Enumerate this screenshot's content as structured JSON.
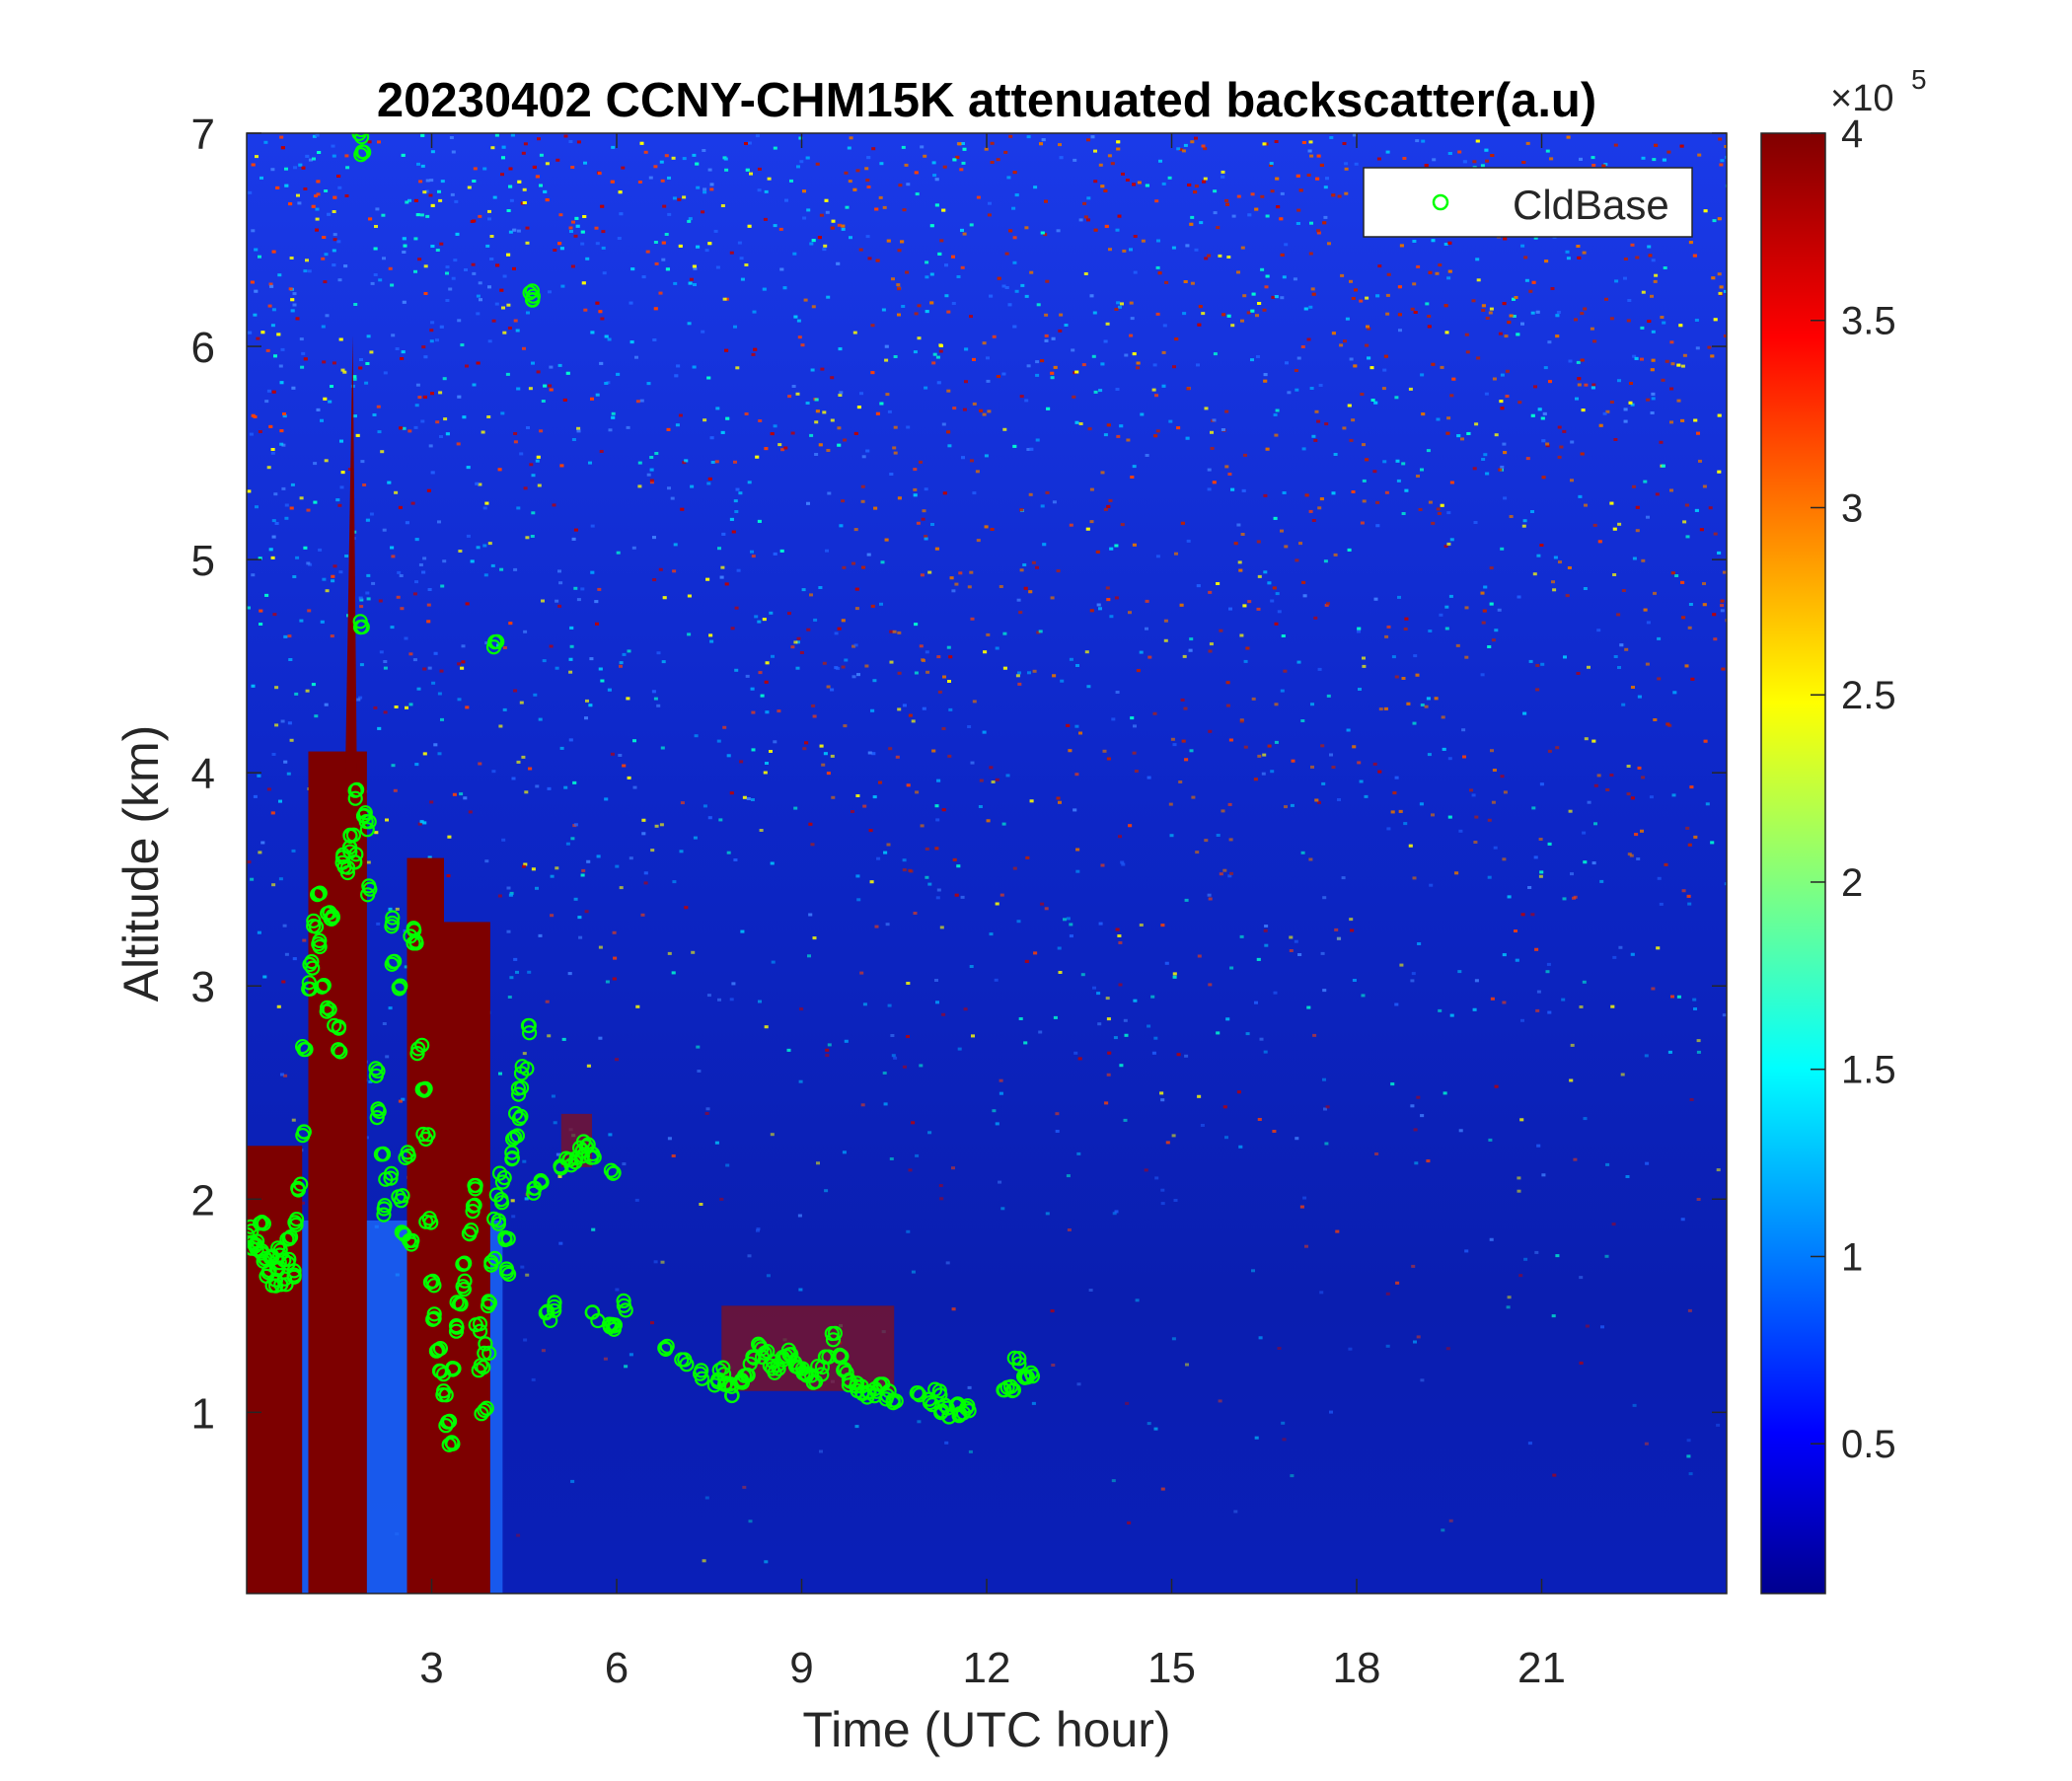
{
  "chart_data": {
    "type": "heatmap",
    "title": "20230402 CCNY-CHM15K attenuated backscatter(a.u)",
    "xlabel": "Time (UTC hour)",
    "ylabel": "Altitude (km)",
    "xlim": [
      0,
      24
    ],
    "ylim": [
      0.15,
      7
    ],
    "xticks": [
      3,
      6,
      9,
      12,
      15,
      18,
      21
    ],
    "yticks": [
      1,
      2,
      3,
      4,
      5,
      6,
      7
    ],
    "colormap": "jet",
    "colorbar": {
      "range": [
        0.1,
        4
      ],
      "ticks": [
        0.5,
        1,
        1.5,
        2,
        2.5,
        3,
        3.5,
        4
      ],
      "exponent_label": "×10",
      "exponent": "5"
    },
    "legend": {
      "position": "top-right",
      "entries": [
        "CldBase"
      ]
    },
    "series": [
      {
        "name": "CldBase",
        "marker": "circle",
        "color": "#00ff00",
        "points": [
          [
            0.05,
            1.85
          ],
          [
            0.1,
            1.78
          ],
          [
            0.15,
            1.8
          ],
          [
            0.2,
            1.75
          ],
          [
            0.25,
            1.9
          ],
          [
            0.3,
            1.7
          ],
          [
            0.35,
            1.65
          ],
          [
            0.4,
            1.72
          ],
          [
            0.45,
            1.6
          ],
          [
            0.5,
            1.68
          ],
          [
            0.55,
            1.75
          ],
          [
            0.6,
            1.62
          ],
          [
            0.65,
            1.7
          ],
          [
            0.7,
            1.8
          ],
          [
            0.75,
            1.65
          ],
          [
            0.8,
            1.9
          ],
          [
            0.85,
            2.05
          ],
          [
            0.9,
            2.3
          ],
          [
            0.95,
            2.7
          ],
          [
            1.0,
            3.0
          ],
          [
            1.05,
            3.1
          ],
          [
            1.1,
            3.3
          ],
          [
            1.15,
            3.45
          ],
          [
            1.2,
            3.2
          ],
          [
            1.25,
            3.0
          ],
          [
            1.3,
            2.9
          ],
          [
            1.35,
            3.35
          ],
          [
            1.4,
            3.3
          ],
          [
            1.45,
            2.8
          ],
          [
            1.5,
            2.7
          ],
          [
            1.55,
            3.6
          ],
          [
            1.6,
            3.55
          ],
          [
            1.65,
            3.65
          ],
          [
            1.7,
            3.7
          ],
          [
            1.75,
            3.6
          ],
          [
            1.8,
            3.9
          ],
          [
            1.85,
            4.7
          ],
          [
            1.9,
            3.8
          ],
          [
            1.95,
            3.75
          ],
          [
            1.85,
            7.0
          ],
          [
            1.88,
            6.9
          ],
          [
            2.0,
            3.45
          ],
          [
            2.1,
            2.6
          ],
          [
            2.15,
            2.4
          ],
          [
            2.2,
            2.2
          ],
          [
            2.25,
            1.95
          ],
          [
            2.3,
            2.1
          ],
          [
            2.35,
            3.3
          ],
          [
            2.4,
            3.1
          ],
          [
            2.45,
            3.0
          ],
          [
            2.5,
            2.0
          ],
          [
            2.55,
            1.85
          ],
          [
            2.6,
            2.2
          ],
          [
            2.65,
            1.8
          ],
          [
            2.7,
            3.25
          ],
          [
            2.75,
            3.2
          ],
          [
            2.8,
            2.7
          ],
          [
            2.85,
            2.5
          ],
          [
            2.9,
            2.3
          ],
          [
            2.95,
            1.9
          ],
          [
            3.0,
            1.6
          ],
          [
            3.05,
            1.45
          ],
          [
            3.1,
            1.3
          ],
          [
            3.15,
            1.2
          ],
          [
            3.2,
            1.1
          ],
          [
            3.25,
            0.95
          ],
          [
            3.3,
            0.85
          ],
          [
            3.35,
            1.2
          ],
          [
            3.4,
            1.4
          ],
          [
            3.45,
            1.5
          ],
          [
            3.5,
            1.6
          ],
          [
            3.55,
            1.7
          ],
          [
            3.6,
            1.85
          ],
          [
            3.65,
            1.95
          ],
          [
            3.7,
            2.05
          ],
          [
            3.75,
            1.4
          ],
          [
            3.8,
            1.2
          ],
          [
            3.85,
            1.0
          ],
          [
            3.9,
            1.3
          ],
          [
            3.95,
            1.5
          ],
          [
            4.0,
            1.7
          ],
          [
            4.02,
            4.6
          ],
          [
            4.05,
            1.9
          ],
          [
            4.1,
            2.0
          ],
          [
            4.15,
            2.1
          ],
          [
            4.2,
            1.8
          ],
          [
            4.25,
            1.65
          ],
          [
            4.3,
            2.2
          ],
          [
            4.35,
            2.3
          ],
          [
            4.4,
            2.4
          ],
          [
            4.45,
            2.5
          ],
          [
            4.5,
            2.6
          ],
          [
            4.55,
            2.8
          ],
          [
            4.6,
            6.25
          ],
          [
            4.65,
            6.22
          ],
          [
            4.7,
            2.05
          ],
          [
            4.8,
            2.1
          ],
          [
            4.9,
            1.45
          ],
          [
            5.0,
            1.5
          ],
          [
            5.1,
            2.15
          ],
          [
            5.2,
            2.2
          ],
          [
            5.3,
            2.18
          ],
          [
            5.4,
            2.22
          ],
          [
            5.5,
            2.25
          ],
          [
            5.6,
            2.2
          ],
          [
            5.65,
            1.45
          ],
          [
            5.9,
            1.42
          ],
          [
            6.0,
            1.4
          ],
          [
            5.95,
            2.13
          ],
          [
            6.1,
            1.5
          ],
          [
            6.8,
            1.3
          ],
          [
            7.1,
            1.23
          ],
          [
            7.4,
            1.18
          ],
          [
            7.6,
            1.15
          ],
          [
            7.7,
            1.2
          ],
          [
            7.8,
            1.12
          ],
          [
            7.9,
            1.1
          ],
          [
            8.0,
            1.15
          ],
          [
            8.1,
            1.18
          ],
          [
            8.2,
            1.25
          ],
          [
            8.3,
            1.3
          ],
          [
            8.4,
            1.28
          ],
          [
            8.5,
            1.22
          ],
          [
            8.6,
            1.2
          ],
          [
            8.7,
            1.25
          ],
          [
            8.8,
            1.28
          ],
          [
            8.9,
            1.22
          ],
          [
            9.0,
            1.2
          ],
          [
            9.1,
            1.18
          ],
          [
            9.2,
            1.15
          ],
          [
            9.3,
            1.2
          ],
          [
            9.4,
            1.25
          ],
          [
            9.5,
            1.35
          ],
          [
            9.6,
            1.28
          ],
          [
            9.7,
            1.2
          ],
          [
            9.8,
            1.15
          ],
          [
            9.9,
            1.12
          ],
          [
            10.0,
            1.1
          ],
          [
            10.1,
            1.08
          ],
          [
            10.2,
            1.1
          ],
          [
            10.3,
            1.12
          ],
          [
            10.4,
            1.08
          ],
          [
            10.5,
            1.06
          ],
          [
            10.9,
            1.08
          ],
          [
            11.1,
            1.05
          ],
          [
            11.2,
            1.1
          ],
          [
            11.3,
            1.02
          ],
          [
            11.4,
            1.0
          ],
          [
            11.5,
            1.05
          ],
          [
            11.6,
            0.98
          ],
          [
            11.7,
            1.03
          ],
          [
            12.3,
            1.1
          ],
          [
            12.4,
            1.12
          ],
          [
            12.5,
            1.25
          ],
          [
            12.6,
            1.15
          ],
          [
            12.7,
            1.18
          ]
        ]
      }
    ],
    "features": {
      "saturated_cloud_columns_hours": [
        [
          0,
          0.9
        ],
        [
          1.0,
          1.95
        ],
        [
          2.6,
          3.2
        ],
        [
          3.2,
          3.95
        ]
      ],
      "cloud_layer_hours": [
        [
          5.1,
          5.6
        ],
        [
          7.6,
          10.5
        ]
      ]
    }
  }
}
